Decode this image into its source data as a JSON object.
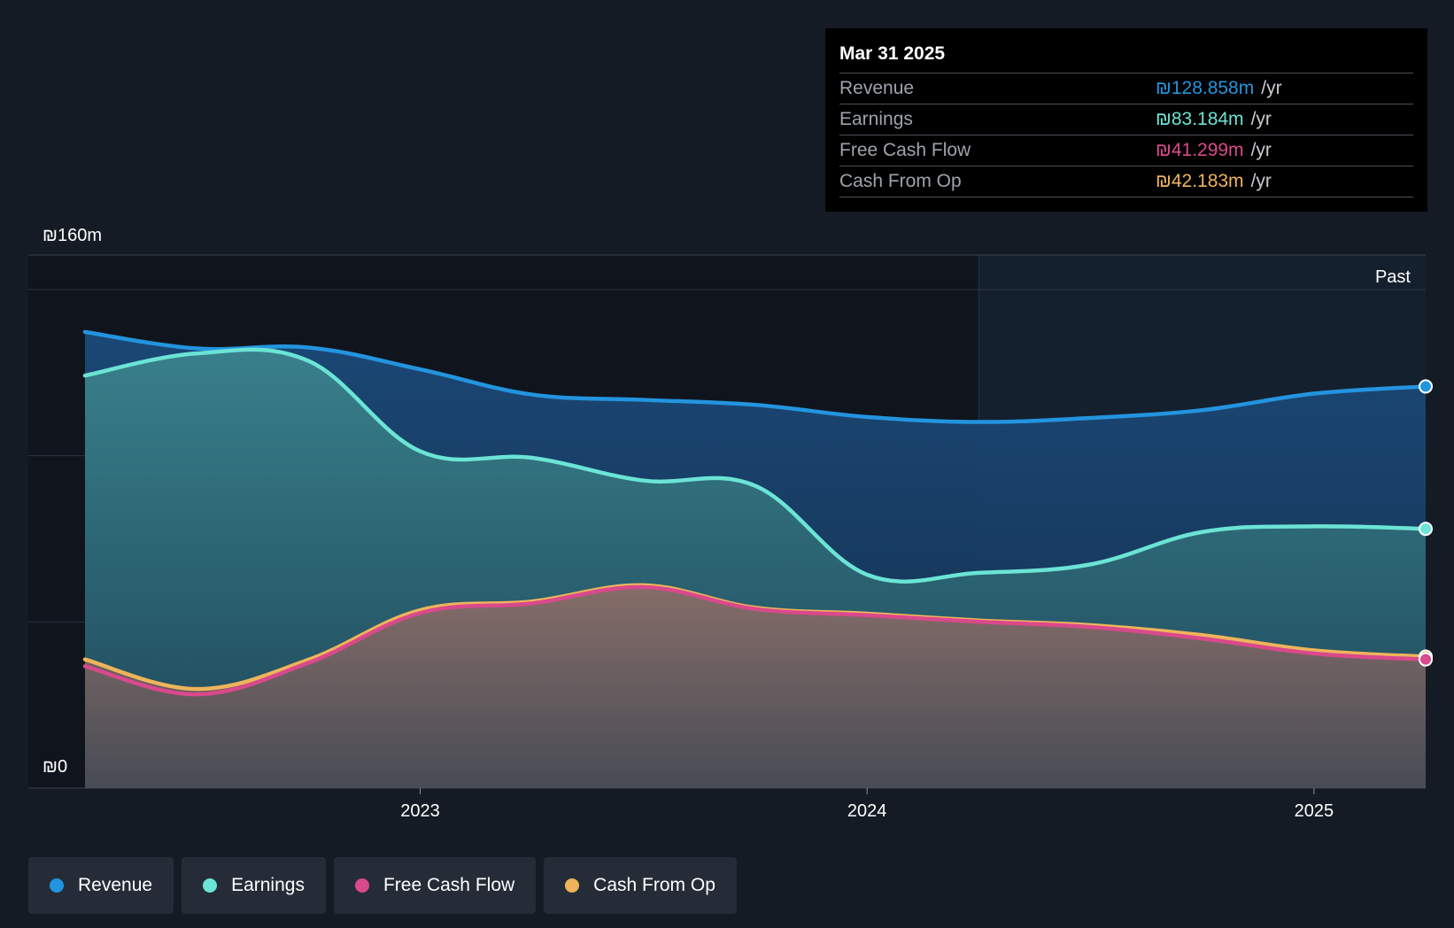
{
  "tooltip": {
    "date": "Mar 31 2025",
    "rows": [
      {
        "label": "Revenue",
        "value": "₪128.858m",
        "unit": "/yr",
        "color": "#2394df"
      },
      {
        "label": "Earnings",
        "value": "₪83.184m",
        "unit": "/yr",
        "color": "#6be4d5"
      },
      {
        "label": "Free Cash Flow",
        "value": "₪41.299m",
        "unit": "/yr",
        "color": "#d9498c"
      },
      {
        "label": "Cash From Op",
        "value": "₪42.183m",
        "unit": "/yr",
        "color": "#eeb45b"
      }
    ]
  },
  "past_label": "Past",
  "legend": [
    {
      "label": "Revenue",
      "color": "#2394df"
    },
    {
      "label": "Earnings",
      "color": "#6be4d5"
    },
    {
      "label": "Free Cash Flow",
      "color": "#d9498c"
    },
    {
      "label": "Cash From Op",
      "color": "#eeb45b"
    }
  ],
  "chart_data": {
    "type": "area",
    "title": "",
    "xlabel": "",
    "ylabel": "",
    "currency": "₪",
    "y_tick_labels": [
      "₪0",
      "₪160m"
    ],
    "ylim": [
      0,
      160
    ],
    "x_tick_labels": [
      "2023",
      "2024",
      "2025"
    ],
    "x_ticks": [
      2023.0,
      2024.0,
      2025.0
    ],
    "xlim": [
      2022.25,
      2025.25
    ],
    "past_start": 2024.25,
    "grid": true,
    "legend_position": "bottom",
    "series": [
      {
        "name": "Revenue",
        "color": "#2394df",
        "x": [
          2022.25,
          2022.5,
          2022.75,
          2023.0,
          2023.25,
          2023.5,
          2023.75,
          2024.0,
          2024.25,
          2024.5,
          2024.75,
          2025.0,
          2025.25
        ],
        "values": [
          146.4,
          141.1,
          141.4,
          134.4,
          126.3,
          124.6,
          123.0,
          119.1,
          117.5,
          118.8,
          121.3,
          126.6,
          128.9
        ]
      },
      {
        "name": "Earnings",
        "color": "#6be4d5",
        "x": [
          2022.25,
          2022.5,
          2022.75,
          2023.0,
          2023.25,
          2023.5,
          2023.75,
          2024.0,
          2024.25,
          2024.5,
          2024.75,
          2025.0,
          2025.25
        ],
        "values": [
          132.4,
          139.5,
          137.1,
          108.1,
          106.0,
          98.7,
          97.0,
          68.5,
          69.1,
          71.8,
          82.2,
          84.0,
          83.2
        ]
      },
      {
        "name": "Free Cash Flow",
        "color": "#d9498c",
        "x": [
          2022.25,
          2022.5,
          2022.75,
          2023.0,
          2023.25,
          2023.5,
          2023.75,
          2024.0,
          2024.25,
          2024.5,
          2024.75,
          2025.0,
          2025.25
        ],
        "values": [
          39.1,
          30.1,
          40.2,
          56.2,
          59.3,
          64.5,
          57.5,
          55.5,
          53.4,
          51.7,
          48.0,
          43.2,
          41.3
        ]
      },
      {
        "name": "Cash From Op",
        "color": "#eeb45b",
        "x": [
          2022.25,
          2022.5,
          2022.75,
          2023.0,
          2023.25,
          2023.5,
          2023.75,
          2024.0,
          2024.25,
          2024.5,
          2024.75,
          2025.0,
          2025.25
        ],
        "values": [
          41.3,
          31.8,
          41.2,
          57.1,
          59.9,
          65.1,
          57.9,
          56.0,
          53.8,
          52.3,
          49.1,
          44.2,
          42.2
        ]
      }
    ]
  }
}
